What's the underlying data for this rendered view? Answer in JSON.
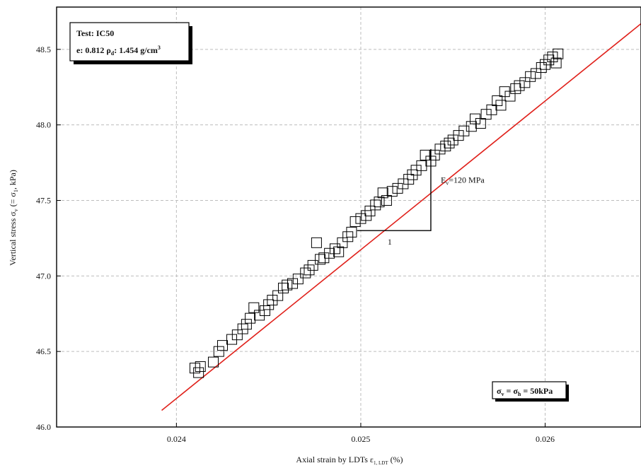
{
  "chart_data": {
    "type": "scatter",
    "xlabel": "Axial strain by LDTs ε",
    "xlabel_sub": "1, LDT",
    "xlabel_unit": " (%)",
    "ylabel": "Vertical stress σ",
    "ylabel_sub": "v",
    "ylabel_mid": " (= σ",
    "ylabel_sub2": "1",
    "ylabel_unit": ", kPa)",
    "xlim": [
      0.02335,
      0.02652
    ],
    "ylim": [
      46.0,
      48.78
    ],
    "xticks": [
      0.024,
      0.025,
      0.026
    ],
    "xtick_labels": [
      "0.024",
      "0.025",
      "0.026"
    ],
    "yticks": [
      46.0,
      46.5,
      47.0,
      47.5,
      48.0,
      48.5
    ],
    "ytick_labels": [
      "46.0",
      "46.5",
      "47.0",
      "47.5",
      "48.0",
      "48.5"
    ],
    "grid": true,
    "marker": "open-square",
    "points": [
      [
        0.0241,
        46.39
      ],
      [
        0.02412,
        46.36
      ],
      [
        0.02413,
        46.4
      ],
      [
        0.0242,
        46.43
      ],
      [
        0.02423,
        46.5
      ],
      [
        0.02425,
        46.54
      ],
      [
        0.0243,
        46.58
      ],
      [
        0.02433,
        46.61
      ],
      [
        0.02436,
        46.65
      ],
      [
        0.02438,
        46.68
      ],
      [
        0.0244,
        46.72
      ],
      [
        0.02442,
        46.79
      ],
      [
        0.02445,
        46.74
      ],
      [
        0.02448,
        46.77
      ],
      [
        0.0245,
        46.81
      ],
      [
        0.02452,
        46.84
      ],
      [
        0.02455,
        46.87
      ],
      [
        0.02458,
        46.92
      ],
      [
        0.0246,
        46.94
      ],
      [
        0.02463,
        46.95
      ],
      [
        0.02466,
        46.98
      ],
      [
        0.0247,
        47.02
      ],
      [
        0.02472,
        47.04
      ],
      [
        0.02474,
        47.07
      ],
      [
        0.02476,
        47.22
      ],
      [
        0.02478,
        47.11
      ],
      [
        0.0248,
        47.12
      ],
      [
        0.02483,
        47.15
      ],
      [
        0.02486,
        47.18
      ],
      [
        0.02488,
        47.16
      ],
      [
        0.0249,
        47.22
      ],
      [
        0.02493,
        47.26
      ],
      [
        0.02495,
        47.29
      ],
      [
        0.02497,
        47.36
      ],
      [
        0.025,
        47.38
      ],
      [
        0.02503,
        47.4
      ],
      [
        0.02505,
        47.43
      ],
      [
        0.02508,
        47.47
      ],
      [
        0.0251,
        47.49
      ],
      [
        0.02512,
        47.55
      ],
      [
        0.02514,
        47.5
      ],
      [
        0.02517,
        47.56
      ],
      [
        0.0252,
        47.58
      ],
      [
        0.02523,
        47.61
      ],
      [
        0.02526,
        47.64
      ],
      [
        0.02528,
        47.67
      ],
      [
        0.0253,
        47.7
      ],
      [
        0.02533,
        47.73
      ],
      [
        0.02535,
        47.8
      ],
      [
        0.02538,
        47.76
      ],
      [
        0.0254,
        47.8
      ],
      [
        0.02543,
        47.84
      ],
      [
        0.02546,
        47.86
      ],
      [
        0.02548,
        47.88
      ],
      [
        0.0255,
        47.9
      ],
      [
        0.02553,
        47.93
      ],
      [
        0.02556,
        47.96
      ],
      [
        0.0256,
        47.99
      ],
      [
        0.02562,
        48.04
      ],
      [
        0.02565,
        48.01
      ],
      [
        0.02568,
        48.07
      ],
      [
        0.02571,
        48.1
      ],
      [
        0.02574,
        48.16
      ],
      [
        0.02576,
        48.13
      ],
      [
        0.02578,
        48.22
      ],
      [
        0.02581,
        48.19
      ],
      [
        0.02584,
        48.24
      ],
      [
        0.02586,
        48.26
      ],
      [
        0.02589,
        48.28
      ],
      [
        0.02592,
        48.32
      ],
      [
        0.02595,
        48.34
      ],
      [
        0.02598,
        48.38
      ],
      [
        0.026,
        48.4
      ],
      [
        0.02602,
        48.43
      ],
      [
        0.02604,
        48.45
      ],
      [
        0.02606,
        48.41
      ],
      [
        0.02607,
        48.47
      ]
    ],
    "fit_line": {
      "x": [
        0.02392,
        0.02652
      ],
      "y": [
        46.11,
        48.67
      ],
      "color": "#e0211b"
    },
    "slope_triangle": {
      "x0": 0.02498,
      "x1": 0.02538,
      "y0": 47.3,
      "y1": 47.84,
      "run_label": "1",
      "rise_label": "E",
      "rise_label_sub": "v",
      "rise_label_value": "=120 MPa"
    },
    "info_box": {
      "line1": "Test: IC50",
      "line2_prefix": "e: 0.812  ρ",
      "line2_sub": "d",
      "line2_value": ": 1.454 g/cm",
      "line2_sup": "3"
    },
    "stress_box": {
      "s1": "σ",
      "s1_sub": "v",
      "eq1": " = σ",
      "s2_sub": "h",
      "eq2": " = 50kPa"
    }
  },
  "colors": {
    "fit_line": "#e0211b",
    "grid": "#bdbdbd",
    "marker": "#000000"
  }
}
